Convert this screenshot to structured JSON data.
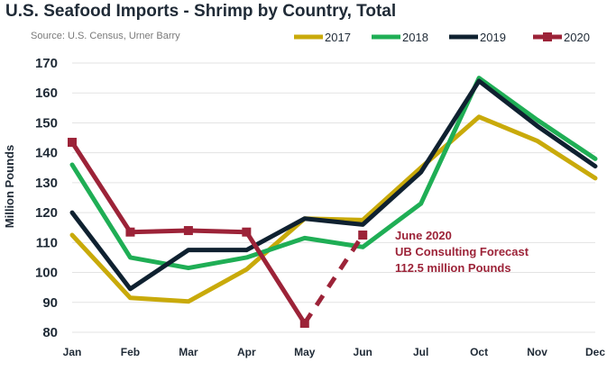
{
  "header": {
    "title": "U.S. Seafood Imports - Shrimp by Country, Total",
    "source": "Source: U.S. Census, Urner Barry"
  },
  "chart_data": {
    "type": "line",
    "title": "U.S. Seafood Imports - Shrimp by Country, Total",
    "ylabel": "Million Pounds",
    "xlabel": "",
    "categories": [
      "Jan",
      "Feb",
      "Mar",
      "Apr",
      "May",
      "Jun",
      "Jul",
      "Oct",
      "Nov",
      "Dec"
    ],
    "ylim": [
      80,
      170
    ],
    "yticks": [
      80,
      90,
      100,
      110,
      120,
      130,
      140,
      150,
      160,
      170
    ],
    "grid": true,
    "legend_position": "top-right",
    "series": [
      {
        "name": "2017",
        "color": "#c9aa0a",
        "values": [
          112.5,
          91.5,
          90.3,
          101,
          118,
          117.5,
          135,
          152,
          144,
          131.5
        ]
      },
      {
        "name": "2018",
        "color": "#1fae55",
        "values": [
          136,
          105,
          101.5,
          105,
          111.5,
          108.5,
          123,
          165,
          151,
          138
        ]
      },
      {
        "name": "2019",
        "color": "#0f2130",
        "values": [
          120,
          94.5,
          107.5,
          107.5,
          118,
          116,
          133.5,
          164,
          149,
          135.5
        ]
      },
      {
        "name": "2020",
        "color": "#9c2338",
        "values": [
          143.5,
          113.5,
          114,
          113.5,
          83,
          112.5,
          null,
          null,
          null,
          null
        ],
        "forecast_from_index": 4
      }
    ],
    "annotation": {
      "lines": [
        "June 2020",
        "UB Consulting Forecast",
        "112.5 million Pounds"
      ],
      "color": "#9c2338"
    }
  }
}
